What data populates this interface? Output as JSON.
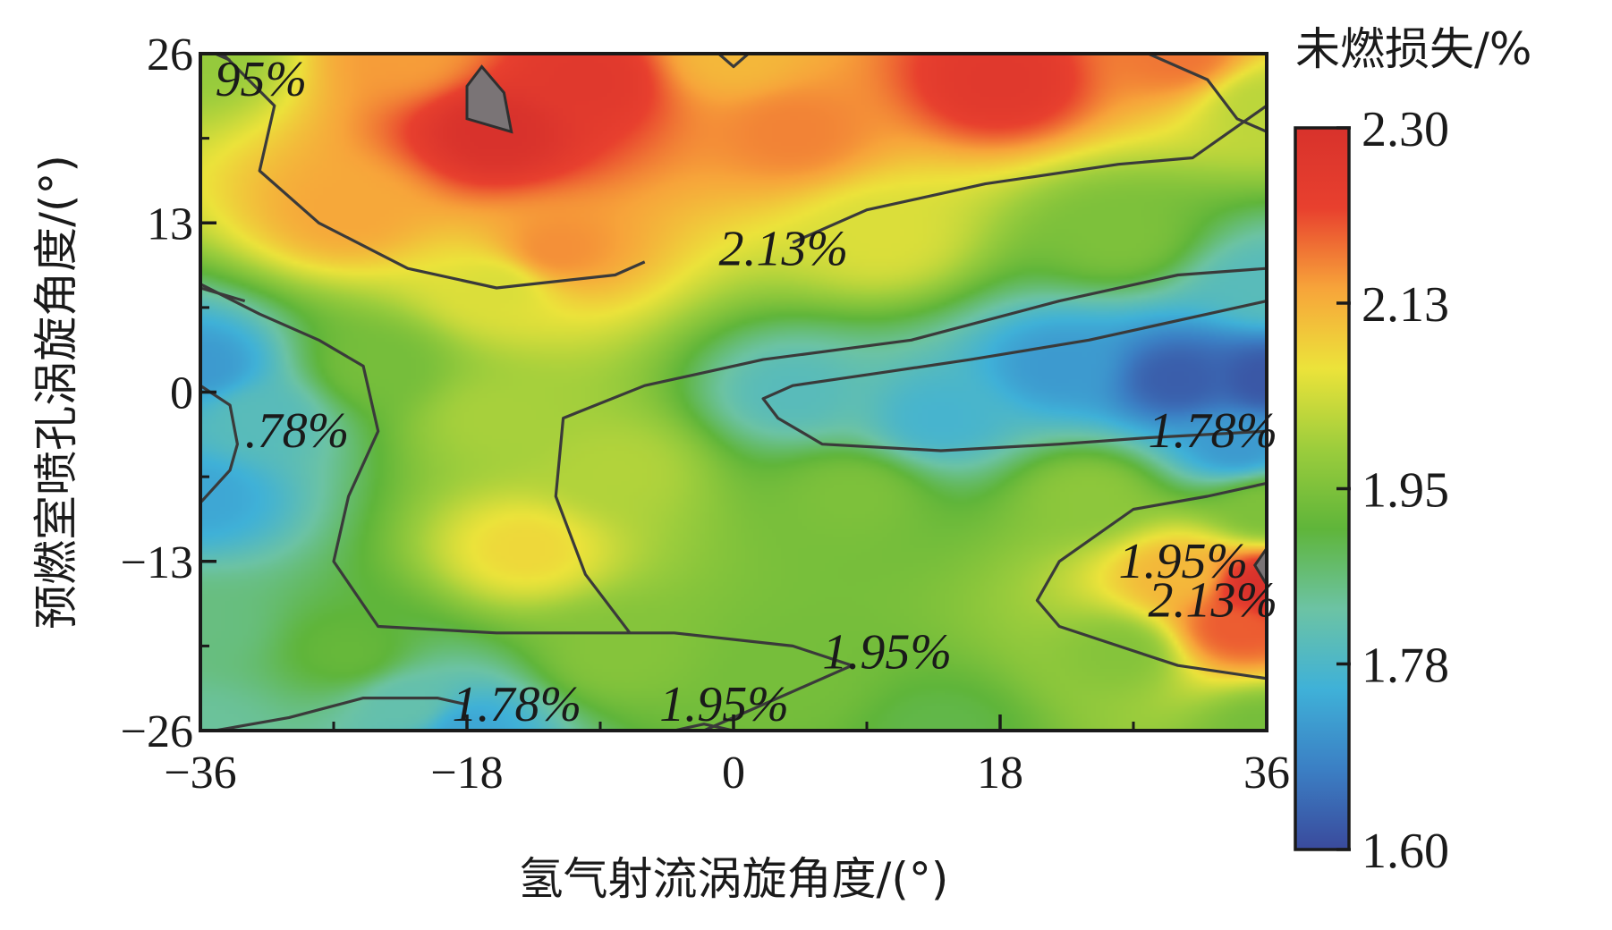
{
  "chart_data": {
    "type": "heatmap",
    "subtype": "filled-contour",
    "xlabel": "氢气射流涡旋角度/(°)",
    "ylabel": "预燃室喷孔涡旋角度/(°)",
    "x_ticks": [
      "−36",
      "−18",
      "0",
      "18",
      "36"
    ],
    "y_ticks": [
      "26",
      "13",
      "0",
      "−13",
      "−26"
    ],
    "xlim": [
      -36,
      36
    ],
    "ylim": [
      -26,
      26
    ],
    "colorbar": {
      "title": "未燃损失/%",
      "min": 1.6,
      "max": 2.3,
      "ticks": [
        "2.30",
        "2.13",
        "1.95",
        "1.78",
        "1.60"
      ],
      "colormap": [
        "#3a4a9c",
        "#3b7fc4",
        "#3fb1d8",
        "#6cc3a4",
        "#5fb53a",
        "#9ccd3c",
        "#ece33a",
        "#f7a43a",
        "#e8402e",
        "#d8322c"
      ]
    },
    "contour_levels": [
      1.78,
      1.95,
      2.13
    ],
    "contour_labels": [
      {
        "text": "95%",
        "x": -35,
        "y": 24
      },
      {
        "text": "2.13%",
        "x": -1,
        "y": 11
      },
      {
        "text": ".78%",
        "x": -33,
        "y": -3
      },
      {
        "text": "1.78%",
        "x": 28,
        "y": -3
      },
      {
        "text": "1.95%",
        "x": 26,
        "y": -13
      },
      {
        "text": "2.13%",
        "x": 28,
        "y": -16
      },
      {
        "text": "1.95%",
        "x": 6,
        "y": -20
      },
      {
        "text": "1.78%",
        "x": -19,
        "y": -24
      },
      {
        "text": "1.95%",
        "x": -5,
        "y": -24
      }
    ],
    "field_peaks": [
      {
        "x": -36,
        "y": 26,
        "value": 1.98
      },
      {
        "x": -22,
        "y": 26,
        "value": 2.15
      },
      {
        "x": -16,
        "y": 20,
        "value": 2.3
      },
      {
        "x": -10,
        "y": 24,
        "value": 2.26
      },
      {
        "x": 0,
        "y": 26,
        "value": 2.12
      },
      {
        "x": 4,
        "y": 20,
        "value": 2.17
      },
      {
        "x": 18,
        "y": 24,
        "value": 2.26
      },
      {
        "x": 30,
        "y": 26,
        "value": 2.18
      },
      {
        "x": 36,
        "y": 22,
        "value": 2.02
      },
      {
        "x": -26,
        "y": 14,
        "value": 2.14
      },
      {
        "x": -12,
        "y": 11,
        "value": 2.16
      },
      {
        "x": -16,
        "y": 8,
        "value": 2.05
      },
      {
        "x": 10,
        "y": 12,
        "value": 2.05
      },
      {
        "x": 26,
        "y": 12,
        "value": 1.95
      },
      {
        "x": 36,
        "y": 8,
        "value": 1.8
      },
      {
        "x": -36,
        "y": 2,
        "value": 1.72
      },
      {
        "x": -32,
        "y": -2,
        "value": 1.8
      },
      {
        "x": -36,
        "y": -8,
        "value": 1.74
      },
      {
        "x": -24,
        "y": 2,
        "value": 1.94
      },
      {
        "x": -16,
        "y": -2,
        "value": 2.0
      },
      {
        "x": -14,
        "y": -12,
        "value": 2.08
      },
      {
        "x": -8,
        "y": -6,
        "value": 2.01
      },
      {
        "x": 4,
        "y": 0,
        "value": 1.8
      },
      {
        "x": 14,
        "y": -2,
        "value": 1.77
      },
      {
        "x": 22,
        "y": 2,
        "value": 1.72
      },
      {
        "x": 30,
        "y": 1,
        "value": 1.63
      },
      {
        "x": 36,
        "y": 1,
        "value": 1.62
      },
      {
        "x": 34,
        "y": -4,
        "value": 1.72
      },
      {
        "x": 8,
        "y": -8,
        "value": 1.95
      },
      {
        "x": 24,
        "y": -8,
        "value": 1.97
      },
      {
        "x": 36,
        "y": -9,
        "value": 1.95
      },
      {
        "x": 30,
        "y": -14,
        "value": 2.12
      },
      {
        "x": 36,
        "y": -15,
        "value": 2.3
      },
      {
        "x": 34,
        "y": -18,
        "value": 2.2
      },
      {
        "x": 26,
        "y": -20,
        "value": 1.96
      },
      {
        "x": -36,
        "y": -18,
        "value": 1.86
      },
      {
        "x": -36,
        "y": -26,
        "value": 1.84
      },
      {
        "x": -26,
        "y": -20,
        "value": 1.92
      },
      {
        "x": -18,
        "y": -26,
        "value": 1.74
      },
      {
        "x": -22,
        "y": -24,
        "value": 1.82
      },
      {
        "x": -8,
        "y": -20,
        "value": 1.96
      },
      {
        "x": 4,
        "y": -22,
        "value": 1.94
      },
      {
        "x": 14,
        "y": -26,
        "value": 1.9
      },
      {
        "x": 36,
        "y": -26,
        "value": 1.94
      }
    ],
    "contour_paths": [
      {
        "level": 2.13,
        "pts": [
          [
            -34.5,
            26
          ],
          [
            -31,
            22
          ],
          [
            -32,
            17
          ],
          [
            -28,
            13
          ],
          [
            -22,
            9.5
          ],
          [
            -16,
            8
          ],
          [
            -8,
            9
          ],
          [
            -6,
            10
          ]
        ]
      },
      {
        "level": 2.13,
        "pts": [
          [
            4,
            11.5
          ],
          [
            9,
            14
          ],
          [
            17,
            16
          ],
          [
            26,
            17.5
          ],
          [
            31,
            18
          ],
          [
            36,
            22
          ]
        ]
      },
      {
        "level": 2.13,
        "pts": [
          [
            28,
            26
          ],
          [
            32,
            24
          ],
          [
            34,
            21
          ],
          [
            36,
            20
          ]
        ]
      },
      {
        "level": 2.13,
        "pts": [
          [
            -35,
            26
          ],
          [
            -34,
            25.5
          ]
        ]
      },
      {
        "level": 2.13,
        "pts": [
          [
            -1,
            26
          ],
          [
            0,
            25
          ],
          [
            1,
            26
          ]
        ]
      },
      {
        "level": 1.95,
        "pts": [
          [
            -36,
            8.3
          ],
          [
            -32,
            6
          ],
          [
            -28,
            4
          ],
          [
            -25,
            2
          ],
          [
            -24,
            -3
          ],
          [
            -26,
            -8
          ],
          [
            -27,
            -13
          ],
          [
            -24,
            -18
          ],
          [
            -16,
            -18.5
          ],
          [
            -4,
            -18.5
          ],
          [
            4,
            -19.5
          ],
          [
            8,
            -21
          ],
          [
            4,
            -23
          ],
          [
            0,
            -25
          ],
          [
            -2,
            -26
          ]
        ]
      },
      {
        "level": 1.95,
        "pts": [
          [
            -36,
            8
          ],
          [
            -33,
            7
          ]
        ]
      },
      {
        "level": 1.95,
        "pts": [
          [
            36,
            9.5
          ],
          [
            30,
            9
          ],
          [
            22,
            7
          ],
          [
            12,
            4
          ],
          [
            2,
            2.5
          ],
          [
            -6,
            0.5
          ],
          [
            -11.5,
            -2
          ],
          [
            -12,
            -8
          ],
          [
            -10,
            -14
          ],
          [
            -7,
            -18.5
          ]
        ]
      },
      {
        "level": 1.95,
        "pts": [
          [
            36,
            -7
          ],
          [
            32,
            -8
          ],
          [
            27,
            -9
          ],
          [
            22,
            -13
          ],
          [
            20.5,
            -16
          ],
          [
            22,
            -18
          ],
          [
            26,
            -19.5
          ],
          [
            30,
            -21
          ],
          [
            36,
            -22
          ]
        ]
      },
      {
        "level": 1.78,
        "pts": [
          [
            -36,
            0.5
          ],
          [
            -34,
            -1
          ],
          [
            -33.5,
            -4
          ],
          [
            -34,
            -6
          ],
          [
            -36,
            -8.5
          ]
        ]
      },
      {
        "level": 1.78,
        "pts": [
          [
            36,
            -3
          ],
          [
            28,
            -3.5
          ],
          [
            22,
            -4
          ],
          [
            14,
            -4.5
          ],
          [
            6,
            -4
          ],
          [
            3,
            -2
          ],
          [
            2,
            -0.5
          ],
          [
            4,
            0.5
          ],
          [
            10,
            1.5
          ],
          [
            16,
            2.5
          ],
          [
            24,
            4
          ],
          [
            32,
            6
          ],
          [
            36,
            7
          ]
        ]
      },
      {
        "level": 1.78,
        "pts": [
          [
            -35,
            -26
          ],
          [
            -30,
            -25
          ],
          [
            -25,
            -23.5
          ],
          [
            -20,
            -23.5
          ],
          [
            -18,
            -24
          ]
        ]
      },
      {
        "level": 1.95,
        "pts": [
          [
            -4,
            -26
          ],
          [
            -2,
            -25.5
          ],
          [
            0,
            -26
          ]
        ]
      }
    ],
    "masked_regions": [
      {
        "name": "top-left-gray",
        "pts": [
          [
            -18,
            23.5
          ],
          [
            -17,
            25
          ],
          [
            -15.5,
            23
          ],
          [
            -15,
            20
          ],
          [
            -18,
            21
          ]
        ]
      },
      {
        "name": "right-gray",
        "pts": [
          [
            36,
            -12
          ],
          [
            35.2,
            -13.3
          ],
          [
            36,
            -14.8
          ]
        ]
      }
    ]
  }
}
